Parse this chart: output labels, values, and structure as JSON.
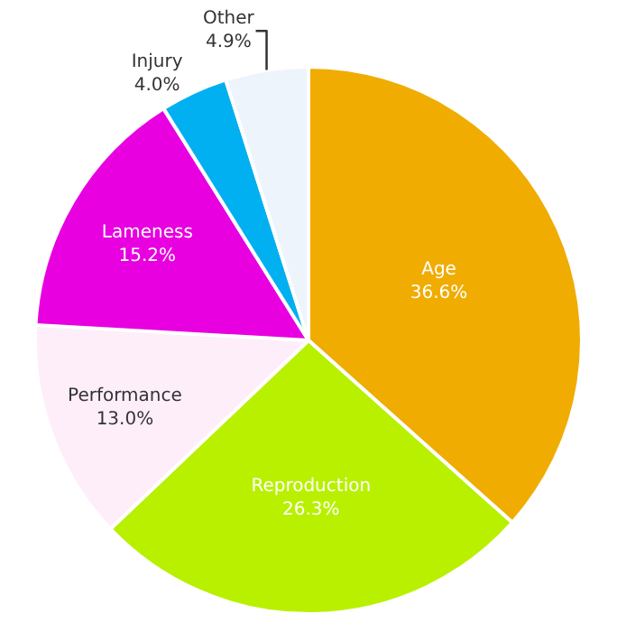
{
  "chart_data": {
    "type": "pie",
    "categories": [
      "Age",
      "Reproduction",
      "Performance",
      "Lameness",
      "Injury",
      "Other"
    ],
    "values": [
      36.6,
      26.3,
      13.0,
      15.2,
      4.0,
      4.9
    ],
    "value_labels": [
      "36.6%",
      "26.3%",
      "13.0%",
      "15.2%",
      "4.0%",
      "4.9%"
    ],
    "colors": [
      "#f0ac00",
      "#b8f000",
      "#fdeefa",
      "#e800e0",
      "#00b0f0",
      "#eef4fc"
    ],
    "legend": false
  }
}
